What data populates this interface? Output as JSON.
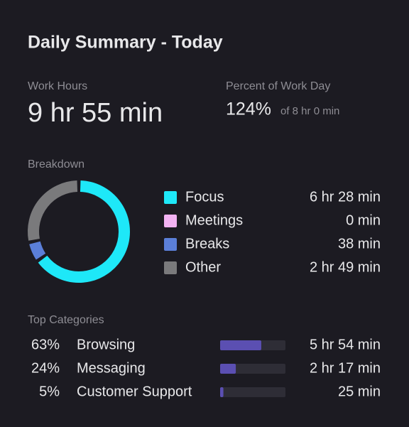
{
  "header": {
    "title": "Daily Summary - Today"
  },
  "work_hours": {
    "label": "Work Hours",
    "value": "9 hr 55 min"
  },
  "percent_of_work_day": {
    "label": "Percent of Work Day",
    "value": "124%",
    "note": "of 8 hr 0 min"
  },
  "breakdown": {
    "title": "Breakdown",
    "items": [
      {
        "name": "Focus",
        "color": "#1ee8f8",
        "minutes": 388,
        "label": "6 hr 28 min"
      },
      {
        "name": "Meetings",
        "color": "#f2b2f2",
        "minutes": 0,
        "label": "0 min"
      },
      {
        "name": "Breaks",
        "color": "#5b7fd8",
        "minutes": 38,
        "label": "38 min"
      },
      {
        "name": "Other",
        "color": "#7a7a7c",
        "minutes": 169,
        "label": "2 hr 49 min"
      }
    ]
  },
  "top_categories": {
    "title": "Top Categories",
    "bar_color": "#5b4fb2",
    "items": [
      {
        "percent": {
          "value": 63,
          "label": "63%"
        },
        "name": "Browsing",
        "duration": "5 hr 54 min"
      },
      {
        "percent": {
          "value": 24,
          "label": "24%"
        },
        "name": "Messaging",
        "duration": "2 hr 17 min"
      },
      {
        "percent": {
          "value": 5,
          "label": "5%"
        },
        "name": "Customer Support",
        "duration": "25 min"
      }
    ]
  }
}
